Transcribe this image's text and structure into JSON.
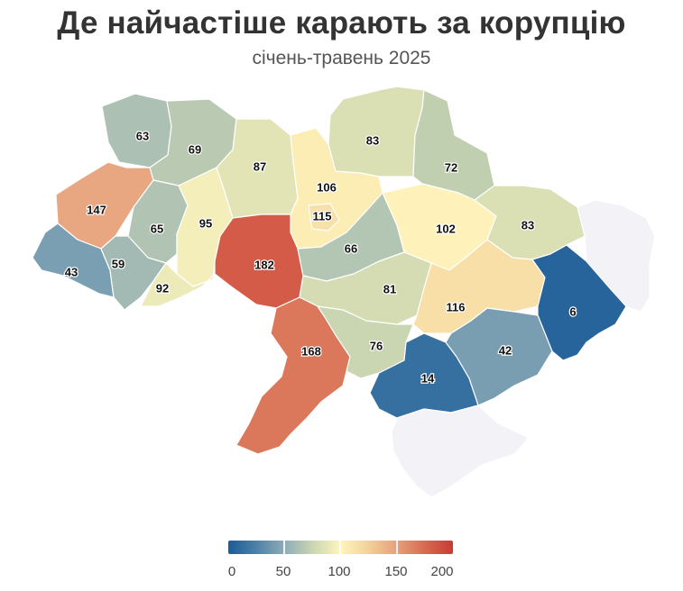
{
  "title": "Де найчастіше карають за корупцію",
  "subtitle": "січень-травень 2025",
  "colors": {
    "scale_low": "#1c5c98",
    "scale_mid": "#fff5bd",
    "scale_high": "#c73b35",
    "no_data": "#f2f2f7",
    "border": "#ffffff"
  },
  "legend": {
    "min": 0,
    "max": 200,
    "ticks": [
      "0",
      "50",
      "100",
      "150",
      "200"
    ]
  },
  "regions": [
    {
      "id": "volyn",
      "value": 63
    },
    {
      "id": "rivne",
      "value": 69
    },
    {
      "id": "zhytomyr",
      "value": 87
    },
    {
      "id": "kyiv-oblast",
      "value": 106
    },
    {
      "id": "kyiv-city",
      "value": 115
    },
    {
      "id": "chernihiv",
      "value": 83
    },
    {
      "id": "sumy",
      "value": 72
    },
    {
      "id": "lviv",
      "value": 147
    },
    {
      "id": "ternopil",
      "value": 65
    },
    {
      "id": "khmelnytskyi",
      "value": 95
    },
    {
      "id": "vinnytsia",
      "value": 182
    },
    {
      "id": "cherkasy",
      "value": 66
    },
    {
      "id": "poltava",
      "value": 102
    },
    {
      "id": "kharkiv",
      "value": 83
    },
    {
      "id": "zakarpattia",
      "value": 43
    },
    {
      "id": "ivano-frankivsk",
      "value": 59
    },
    {
      "id": "chernivtsi",
      "value": 92
    },
    {
      "id": "kirovohrad",
      "value": 81
    },
    {
      "id": "dnipropetrovsk",
      "value": 116
    },
    {
      "id": "donetsk",
      "value": 6
    },
    {
      "id": "odesa",
      "value": 168
    },
    {
      "id": "mykolaiv",
      "value": 76
    },
    {
      "id": "zaporizhzhia",
      "value": 42
    },
    {
      "id": "kherson",
      "value": 14
    },
    {
      "id": "luhansk",
      "value": null
    },
    {
      "id": "crimea",
      "value": null
    }
  ]
}
